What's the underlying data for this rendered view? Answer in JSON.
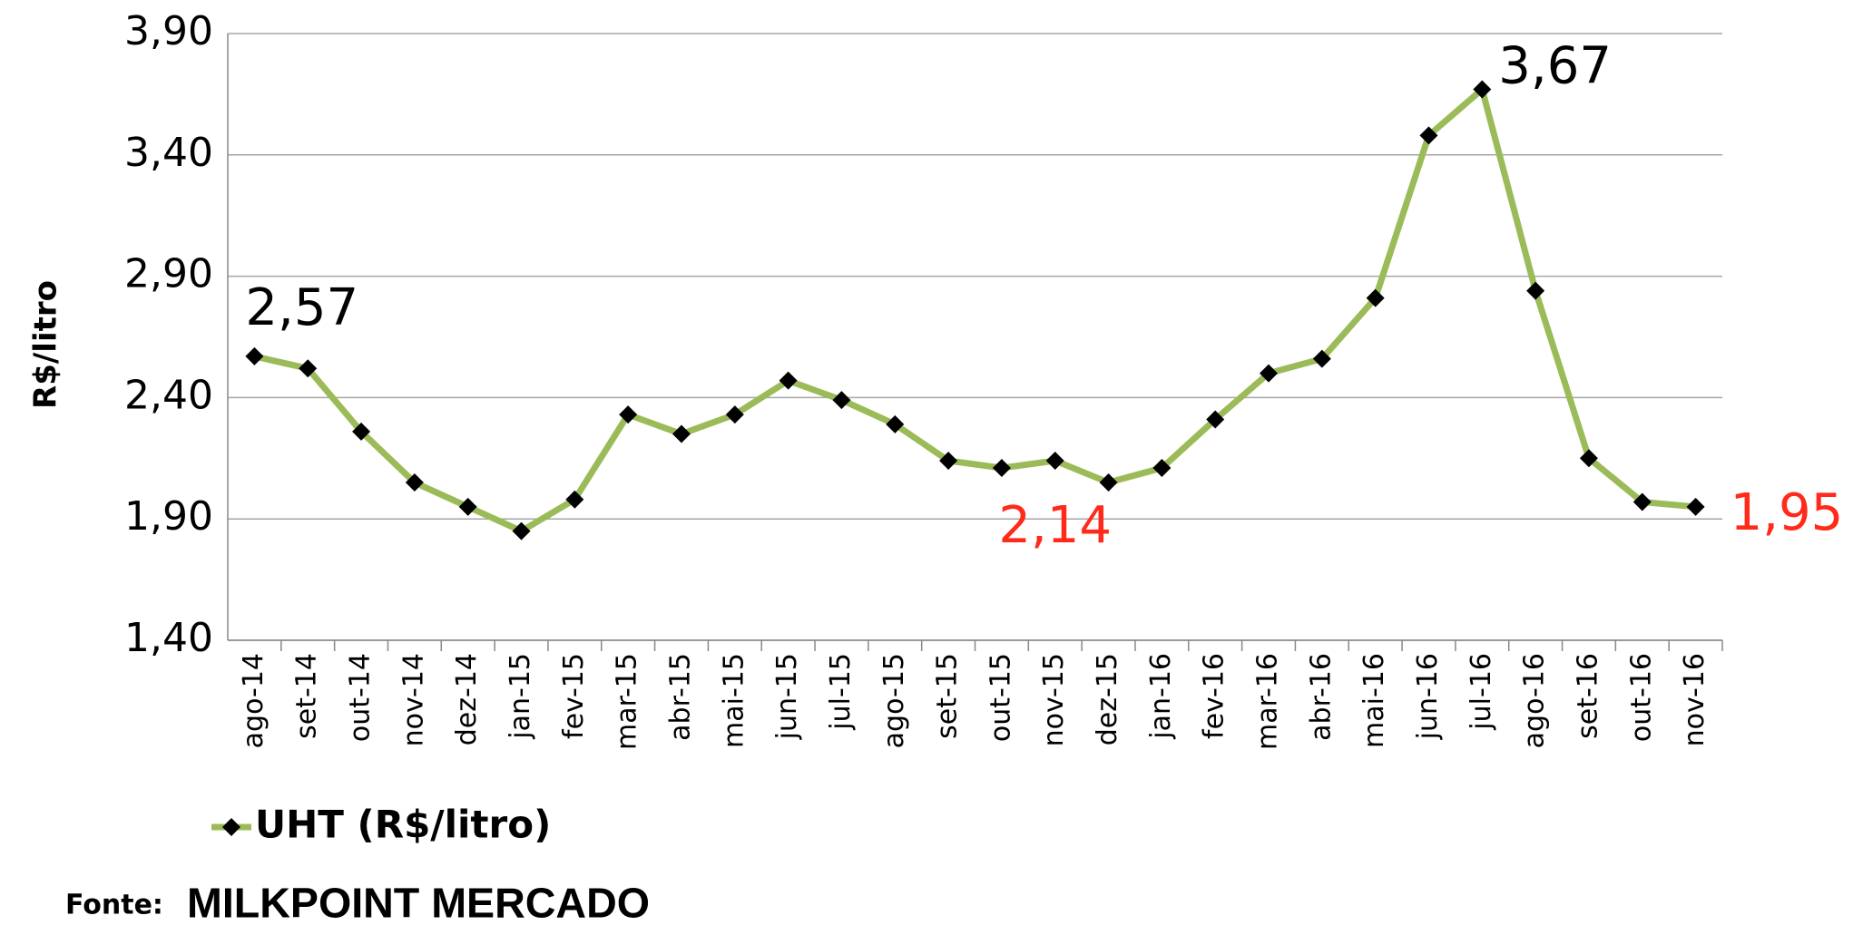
{
  "chart_data": {
    "type": "line",
    "y_label": "R$/litro",
    "categories": [
      "ago-14",
      "set-14",
      "out-14",
      "nov-14",
      "dez-14",
      "jan-15",
      "fev-15",
      "mar-15",
      "abr-15",
      "mai-15",
      "jun-15",
      "jul-15",
      "ago-15",
      "set-15",
      "out-15",
      "nov-15",
      "dez-15",
      "jan-16",
      "fev-16",
      "mar-16",
      "abr-16",
      "mai-16",
      "jun-16",
      "jul-16",
      "ago-16",
      "set-16",
      "out-16",
      "nov-16"
    ],
    "series": [
      {
        "name": "UHT (R$/litro)",
        "color": "#9bbb59",
        "marker_color": "#000000",
        "values": [
          2.57,
          2.52,
          2.26,
          2.05,
          1.95,
          1.85,
          1.98,
          2.33,
          2.25,
          2.33,
          2.47,
          2.39,
          2.29,
          2.14,
          2.11,
          2.14,
          2.05,
          2.11,
          2.31,
          2.5,
          2.56,
          2.81,
          3.48,
          3.67,
          2.84,
          2.15,
          1.97,
          1.95
        ]
      }
    ],
    "annotations": [
      {
        "category": "ago-14",
        "label": "2,57",
        "color": "#000000"
      },
      {
        "category": "nov-15",
        "label": "2,14",
        "color": "#ff2a1a"
      },
      {
        "category": "jul-16",
        "label": "3,67",
        "color": "#000000"
      },
      {
        "category": "nov-16",
        "label": "1,95",
        "color": "#ff2a1a"
      }
    ],
    "ylim": [
      1.4,
      3.9
    ],
    "yticks": [
      {
        "value": 1.4,
        "label": "1,40"
      },
      {
        "value": 1.9,
        "label": "1,90"
      },
      {
        "value": 2.4,
        "label": "2,40"
      },
      {
        "value": 2.9,
        "label": "2,90"
      },
      {
        "value": 3.4,
        "label": "3,40"
      },
      {
        "value": 3.9,
        "label": "3,90"
      }
    ],
    "grid": true,
    "legend": "bottom-left",
    "source": {
      "label": "Fonte:",
      "brand": "MILKPOINT MERCADO"
    }
  }
}
